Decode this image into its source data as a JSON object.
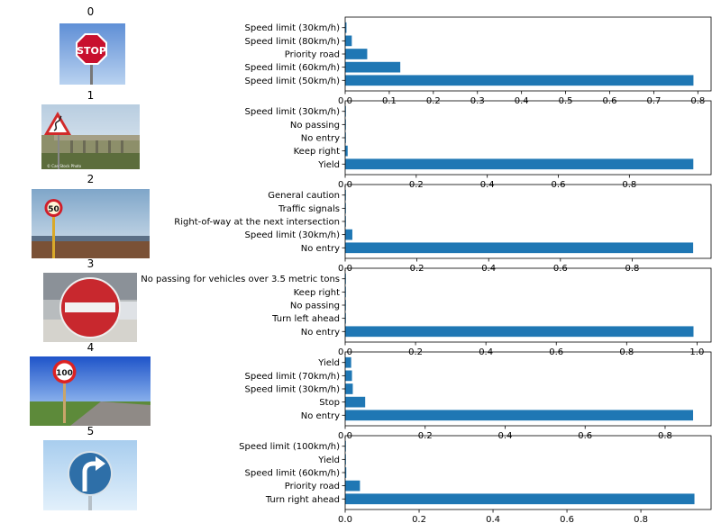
{
  "colors": {
    "bar": "#1f77b4"
  },
  "chart_data": [
    {
      "type": "bar",
      "orientation": "horizontal",
      "title": "0",
      "image": "stop-sign",
      "categories": [
        "Speed limit (50km/h)",
        "Speed limit (60km/h)",
        "Priority road",
        "Speed limit (80km/h)",
        "Speed limit (30km/h)"
      ],
      "values": [
        0.79,
        0.125,
        0.05,
        0.015,
        0.003
      ],
      "xlim": [
        0,
        0.83
      ],
      "xticks": [
        0.0,
        0.1,
        0.2,
        0.3,
        0.4,
        0.5,
        0.6,
        0.7,
        0.8
      ],
      "xtick_labels": [
        "0.0",
        "0.1",
        "0.2",
        "0.3",
        "0.4",
        "0.5",
        "0.6",
        "0.7",
        "0.8"
      ]
    },
    {
      "type": "bar",
      "orientation": "horizontal",
      "title": "1",
      "image": "double-curve-sign",
      "caption": "© Can Stock Photo",
      "categories": [
        "Yield",
        "Keep right",
        "No entry",
        "No passing",
        "Speed limit (30km/h)"
      ],
      "values": [
        0.98,
        0.007,
        0.001,
        0.001,
        0.001
      ],
      "xlim": [
        0,
        1.03
      ],
      "xticks": [
        0.0,
        0.2,
        0.4,
        0.6,
        0.8
      ],
      "xtick_labels": [
        "0.0",
        "0.2",
        "0.4",
        "0.6",
        "0.8"
      ]
    },
    {
      "type": "bar",
      "orientation": "horizontal",
      "title": "2",
      "image": "speed-limit-50-sign",
      "sign_text": "50",
      "categories": [
        "No entry",
        "Speed limit (30km/h)",
        "Right-of-way at the next intersection",
        "Traffic signals",
        "General caution"
      ],
      "values": [
        0.97,
        0.02,
        0.002,
        0.001,
        0.001
      ],
      "xlim": [
        0,
        1.02
      ],
      "xticks": [
        0.0,
        0.2,
        0.4,
        0.6,
        0.8
      ],
      "xtick_labels": [
        "0.0",
        "0.2",
        "0.4",
        "0.6",
        "0.8"
      ]
    },
    {
      "type": "bar",
      "orientation": "horizontal",
      "title": "3",
      "image": "no-entry-sign",
      "categories": [
        "No entry",
        "Turn left ahead",
        "No passing",
        "Keep right",
        "No passing for vehicles over 3.5 metric tons"
      ],
      "values": [
        0.99,
        0.001,
        0.001,
        0.001,
        0.001
      ],
      "xlim": [
        0,
        1.04
      ],
      "xticks": [
        0.0,
        0.2,
        0.4,
        0.6,
        0.8,
        1.0
      ],
      "xtick_labels": [
        "0.0",
        "0.2",
        "0.4",
        "0.6",
        "0.8",
        "1.0"
      ]
    },
    {
      "type": "bar",
      "orientation": "horizontal",
      "title": "4",
      "image": "speed-limit-100-sign",
      "sign_text": "100",
      "categories": [
        "No entry",
        "Stop",
        "Speed limit (30km/h)",
        "Speed limit (70km/h)",
        "Yield"
      ],
      "values": [
        0.87,
        0.05,
        0.019,
        0.017,
        0.015
      ],
      "xlim": [
        0,
        0.915
      ],
      "xticks": [
        0.0,
        0.2,
        0.4,
        0.6,
        0.8
      ],
      "xtick_labels": [
        "0.0",
        "0.2",
        "0.4",
        "0.6",
        "0.8"
      ]
    },
    {
      "type": "bar",
      "orientation": "horizontal",
      "title": "5",
      "image": "turn-right-sign",
      "categories": [
        "Turn right ahead",
        "Priority road",
        "Speed limit (60km/h)",
        "Yield",
        "Speed limit (100km/h)"
      ],
      "values": [
        0.945,
        0.04,
        0.003,
        0.002,
        0.001
      ],
      "xlim": [
        0,
        0.99
      ],
      "xticks": [
        0.0,
        0.2,
        0.4,
        0.6,
        0.8
      ],
      "xtick_labels": [
        "0.0",
        "0.2",
        "0.4",
        "0.6",
        "0.8"
      ]
    }
  ]
}
